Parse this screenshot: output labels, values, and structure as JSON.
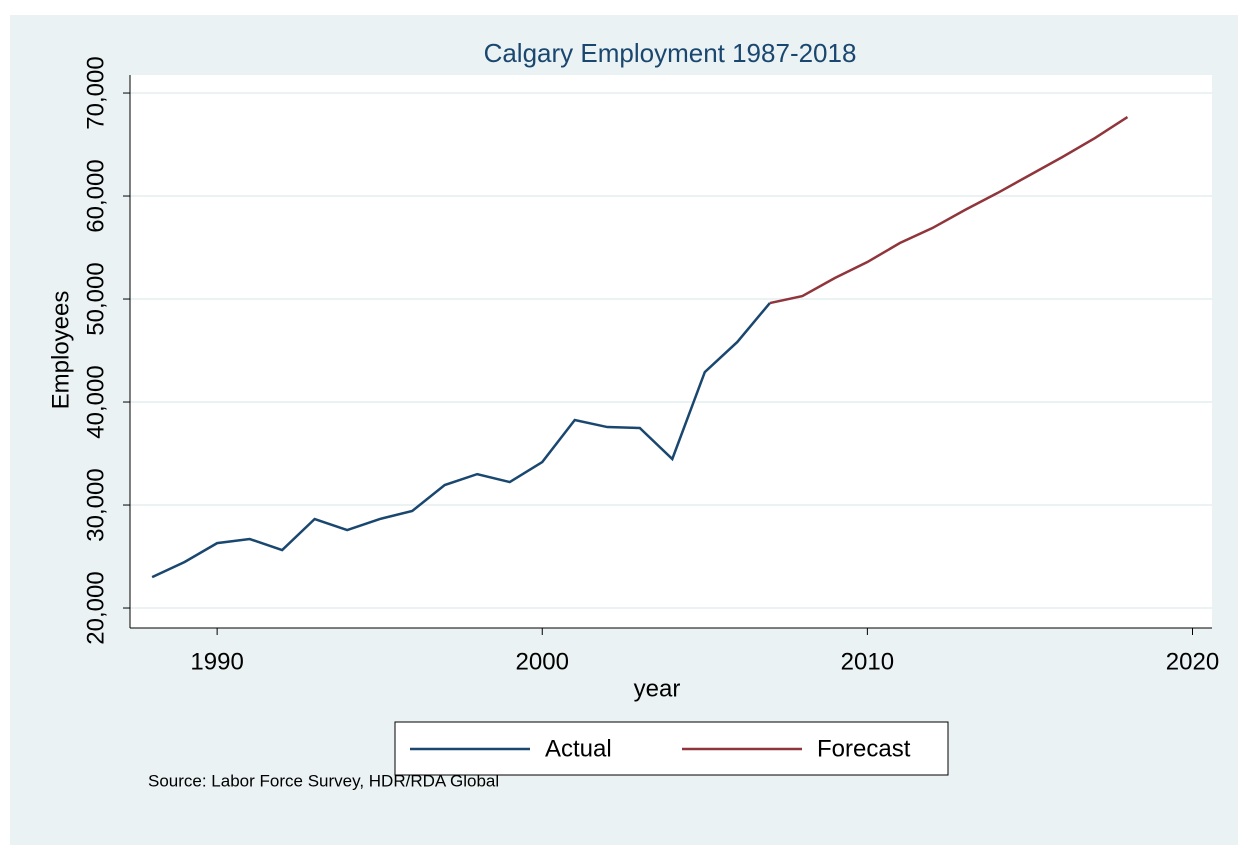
{
  "chart_data": {
    "type": "line",
    "title": "Calgary Employment 1987-2018",
    "x_label": "year",
    "y_label": "Employees",
    "x": [
      1988,
      1989,
      1990,
      1991,
      1992,
      1993,
      1994,
      1995,
      1996,
      1997,
      1998,
      1999,
      2000,
      2001,
      2002,
      2003,
      2004,
      2005,
      2006,
      2007,
      2008,
      2009,
      2010,
      2011,
      2012,
      2013,
      2014,
      2015,
      2016,
      2017,
      2018
    ],
    "series": [
      {
        "name": "Actual",
        "color": "#1a476f",
        "values": [
          23000,
          24470,
          26300,
          26700,
          25630,
          28640,
          27570,
          28640,
          29420,
          31940,
          33000,
          32230,
          34170,
          38250,
          37570,
          37480,
          34470,
          42910,
          45830,
          49610,
          null,
          null,
          null,
          null,
          null,
          null,
          null,
          null,
          null,
          null,
          null
        ]
      },
      {
        "name": "Forecast",
        "color": "#90353b",
        "values": [
          null,
          null,
          null,
          null,
          null,
          null,
          null,
          null,
          null,
          null,
          null,
          null,
          null,
          null,
          null,
          null,
          null,
          null,
          null,
          49610,
          50290,
          52040,
          53590,
          55440,
          56890,
          58640,
          60290,
          62040,
          63790,
          65630,
          67670
        ]
      }
    ],
    "xlim": [
      1987.32,
      2020.6
    ],
    "xticks": [
      1990,
      2000,
      2010,
      2020
    ],
    "ylim": [
      18060,
      71750
    ],
    "yticks": [
      {
        "value": 20000,
        "label": "20,000"
      },
      {
        "value": 30000,
        "label": "30,000"
      },
      {
        "value": 40000,
        "label": "40,000"
      },
      {
        "value": 50000,
        "label": "50,000"
      },
      {
        "value": 60000,
        "label": "60,000"
      },
      {
        "value": 70000,
        "label": "70,000"
      }
    ],
    "grid": true,
    "legend": "bottom",
    "note": "Source: Labor Force Survey, HDR/RDA Global"
  }
}
